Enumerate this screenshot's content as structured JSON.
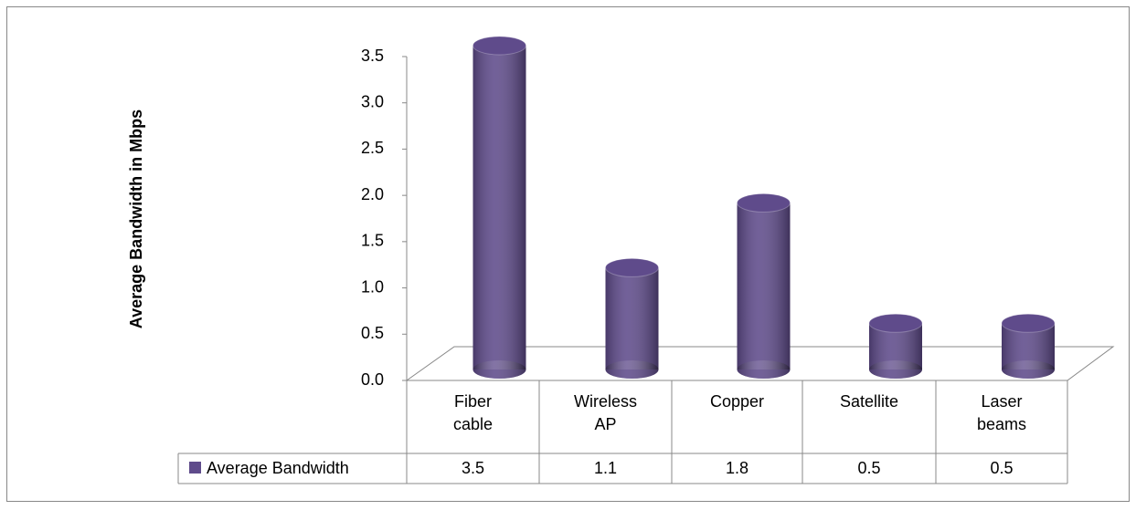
{
  "chart_data": {
    "type": "bar",
    "y_label": "Average Bandwidth in Mbps",
    "categories": [
      "Fiber cable",
      "Wireless AP",
      "Copper",
      "Satellite",
      "Laser beams"
    ],
    "series": [
      {
        "name": "Average Bandwidth",
        "color": "#5f4b8b",
        "values": [
          3.5,
          1.1,
          1.8,
          0.5,
          0.5
        ]
      }
    ],
    "ylim": [
      0,
      3.5
    ],
    "yticks": [
      {
        "value": 0,
        "label": "0.0"
      },
      0.5,
      {
        "value": 1,
        "label": "1.0"
      },
      1.5,
      {
        "value": 2,
        "label": "2.0"
      },
      2.5,
      {
        "value": 3,
        "label": "3.0"
      },
      3.5
    ]
  }
}
